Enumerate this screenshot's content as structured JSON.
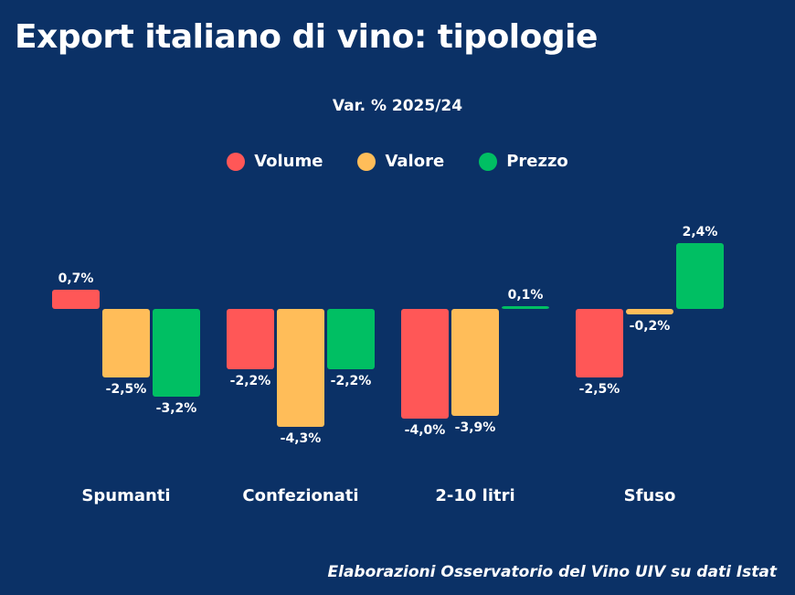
{
  "chart_data": {
    "type": "bar",
    "title": "Export italiano di vino: tipologie",
    "subtitle": "Var. % 2025/24",
    "categories": [
      "Spumanti",
      "Confezionati",
      "2-10 litri",
      "Sfuso"
    ],
    "series": [
      {
        "name": "Volume",
        "color": "#ff5757",
        "values": [
          0.7,
          -2.2,
          -4.0,
          -2.5
        ],
        "labels": [
          "0,7%",
          "-2,2%",
          "-4,0%",
          "-2,5%"
        ]
      },
      {
        "name": "Valore",
        "color": "#ffbd59",
        "values": [
          -2.5,
          -4.3,
          -3.9,
          -0.2
        ],
        "labels": [
          "-2,5%",
          "-4,3%",
          "-3,9%",
          "-0,2%"
        ]
      },
      {
        "name": "Prezzo",
        "color": "#00bf63",
        "values": [
          -3.2,
          -2.2,
          0.1,
          2.4
        ],
        "labels": [
          "-3,2%",
          "-2,2%",
          "0,1%",
          "2,4%"
        ]
      }
    ],
    "xlabel": "",
    "ylabel": "",
    "grid": false,
    "legend_position": "top-center"
  },
  "footer": "Elaborazioni Osservatorio del Vino UIV su dati Istat"
}
